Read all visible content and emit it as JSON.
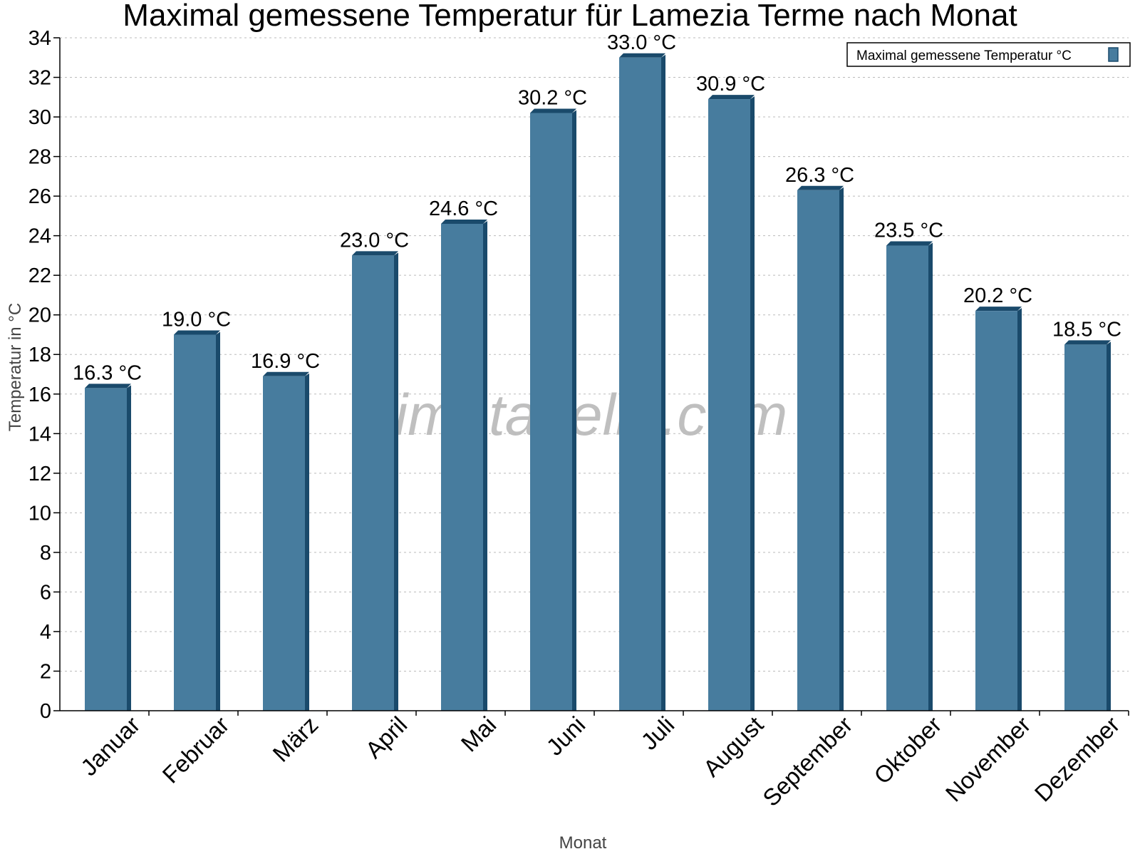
{
  "chart_data": {
    "type": "bar",
    "title": "Maximal gemessene Temperatur für Lamezia Terme nach Monat",
    "xlabel": "Monat",
    "ylabel": "Temperatur in °C",
    "ylim": [
      0,
      34
    ],
    "yticks": [
      0,
      2,
      4,
      6,
      8,
      10,
      12,
      14,
      16,
      18,
      20,
      22,
      24,
      26,
      28,
      30,
      32,
      34
    ],
    "grid": true,
    "legend_placement": "top-right",
    "watermark": "klimatabelle.com",
    "categories": [
      "Januar",
      "Februar",
      "März",
      "April",
      "Mai",
      "Juni",
      "Juli",
      "August",
      "September",
      "Oktober",
      "November",
      "Dezember"
    ],
    "series": [
      {
        "name": "Maximal gemessene Temperatur °C",
        "values": [
          16.3,
          19.0,
          16.9,
          23.0,
          24.6,
          30.2,
          33.0,
          30.9,
          26.3,
          23.5,
          20.2,
          18.5
        ],
        "labels": [
          "16.3 °C",
          "19.0 °C",
          "16.9 °C",
          "23.0 °C",
          "24.6 °C",
          "30.2 °C",
          "33.0 °C",
          "30.9 °C",
          "26.3 °C",
          "23.5 °C",
          "20.2 °C",
          "18.5 °C"
        ],
        "color": "#477c9e",
        "shade_color": "#1a4a6b"
      }
    ]
  }
}
